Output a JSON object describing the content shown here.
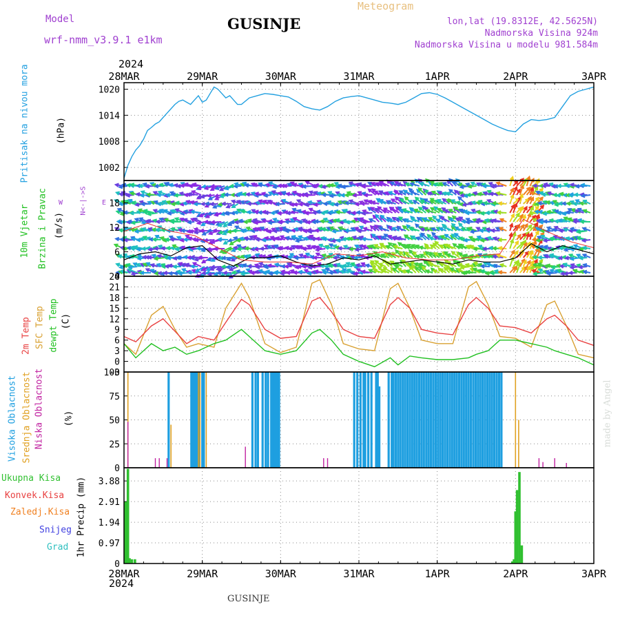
{
  "header": {
    "model_label": "Model",
    "model_name": "wrf-nmm_v3.9.1 e1km",
    "title": "GUSINJE",
    "product": "Meteogram",
    "lonlat": "lon,lat (19.8312E, 42.5625N)",
    "elevation": "Nadmorska Visina 924m",
    "model_elevation": "Nadmorska Visina u modelu 981.584m",
    "year_top": "2024",
    "year_bottom": "2024",
    "footer": "GUSINJE",
    "credit": "made by Angel"
  },
  "colors": {
    "pressure": "#22a0e0",
    "temp2m": "#e84040",
    "sfc": "#d8a030",
    "dew": "#20c020",
    "high_cloud": "#1e9fe0",
    "mid_cloud": "#e0a020",
    "low_cloud": "#c020a0",
    "total_precip": "#30c030",
    "conv_precip": "#e84040",
    "frozen_precip": "#f08020",
    "snow": "#4040e0",
    "hail": "#30c0c0",
    "wind_black": "#000000",
    "wind_red": "#e83030",
    "legend_purple": "#a040d0"
  },
  "chart_data": [
    {
      "type": "line",
      "panel": "pressure",
      "ylabel_left": "Pritisak na nivou mora",
      "ylabel_unit": "(hPa)",
      "x_ticks": [
        "28MAR",
        "29MAR",
        "30MAR",
        "31MAR",
        "1APR",
        "2APR",
        "3APR"
      ],
      "yticks": [
        1002,
        1008,
        1014,
        1020
      ],
      "ylim": [
        999,
        1021.5
      ],
      "grid": true,
      "x_days": [
        0,
        0.05,
        0.1,
        0.15,
        0.2,
        0.25,
        0.3,
        0.35,
        0.4,
        0.45,
        0.5,
        0.55,
        0.6,
        0.65,
        0.7,
        0.75,
        0.8,
        0.85,
        0.9,
        0.95,
        1.0,
        1.05,
        1.1,
        1.15,
        1.2,
        1.25,
        1.3,
        1.35,
        1.4,
        1.45,
        1.5,
        1.6,
        1.7,
        1.8,
        1.9,
        2.0,
        2.1,
        2.2,
        2.3,
        2.4,
        2.5,
        2.6,
        2.7,
        2.8,
        2.9,
        3.0,
        3.1,
        3.2,
        3.3,
        3.4,
        3.5,
        3.6,
        3.7,
        3.8,
        3.9,
        4.0,
        4.1,
        4.2,
        4.3,
        4.4,
        4.5,
        4.6,
        4.7,
        4.8,
        4.9,
        5.0,
        5.1,
        5.2,
        5.3,
        5.4,
        5.5,
        5.6,
        5.7,
        5.8,
        5.9,
        6.0
      ],
      "values": [
        999.5,
        1002.5,
        1004.5,
        1006,
        1007,
        1008.5,
        1010.5,
        1011.2,
        1012,
        1012.5,
        1013.5,
        1014.5,
        1015.5,
        1016.5,
        1017.2,
        1017.5,
        1017,
        1016.5,
        1017.5,
        1018.5,
        1017,
        1017.5,
        1019,
        1020.5,
        1020,
        1019,
        1018,
        1018.5,
        1017.5,
        1016.5,
        1016.5,
        1018,
        1018.5,
        1019,
        1018.8,
        1018.5,
        1018.2,
        1017.2,
        1016,
        1015.5,
        1015.2,
        1016,
        1017.2,
        1018,
        1018.3,
        1018.5,
        1018,
        1017.5,
        1017,
        1016.8,
        1016.5,
        1017,
        1018,
        1019,
        1019.2,
        1018.8,
        1018,
        1017,
        1016,
        1015,
        1014,
        1013,
        1012,
        1011.2,
        1010.5,
        1010.2,
        1012,
        1013,
        1012.8,
        1013,
        1013.5,
        1016,
        1018.5,
        1019.5,
        1020,
        1020.5
      ]
    },
    {
      "type": "line",
      "panel": "wind",
      "ylabel_left": [
        "10m Vjetar",
        "Brzina i Pravac"
      ],
      "ylabel_unit": "(m/s)",
      "compass": [
        "N",
        "<-",
        "|",
        "->",
        "S"
      ],
      "compass_w": "W",
      "compass_e": "E",
      "yticks": [
        0,
        6,
        12,
        18
      ],
      "ylim": [
        0,
        23.5
      ],
      "series": [
        {
          "x_days": [
            0,
            0.2,
            0.4,
            0.6,
            0.8,
            1.0,
            1.2,
            1.4,
            1.6,
            1.8,
            2.0,
            2.2,
            2.4,
            2.6,
            2.8,
            3.0,
            3.2,
            3.4,
            3.6,
            3.8,
            4.0,
            4.2,
            4.4,
            4.6,
            4.8,
            5.0,
            5.2,
            5.4,
            5.6,
            5.8,
            6.0
          ],
          "values": [
            4,
            5.5,
            6,
            5,
            7,
            7.5,
            4,
            2.5,
            4.5,
            4.5,
            5,
            3.5,
            2.5,
            3,
            4.5,
            4,
            5,
            3,
            3.5,
            4,
            3.5,
            3,
            4,
            3.5,
            3.5,
            4.5,
            8,
            6,
            7.5,
            6.5,
            5.5
          ]
        },
        {
          "x_days": [
            0,
            0.3,
            0.6,
            0.9,
            1.2,
            1.5,
            1.8,
            2.1,
            2.4,
            2.7,
            3.0,
            3.3,
            3.6,
            3.9,
            4.2,
            4.5,
            4.8,
            5.1,
            5.4,
            5.7,
            6.0
          ],
          "values": [
            11,
            13,
            11,
            10,
            7,
            4,
            3.5,
            3.5,
            3,
            5.5,
            5,
            6,
            4.5,
            4,
            4,
            5,
            5.5,
            14,
            11,
            8.5,
            7
          ]
        }
      ]
    },
    {
      "type": "line",
      "panel": "temperature",
      "ylabel_left": [
        "2m Temp",
        "SFC Temp",
        "dewpt Temp"
      ],
      "ylabel_unit": "(C)",
      "yticks": [
        -3,
        0,
        3,
        6,
        9,
        12,
        15,
        18,
        21,
        24
      ],
      "ylim": [
        -3,
        24
      ],
      "series": [
        {
          "name": "2m Temp",
          "x_days": [
            0,
            0.15,
            0.35,
            0.5,
            0.65,
            0.8,
            0.95,
            1.15,
            1.3,
            1.5,
            1.6,
            1.8,
            2.0,
            2.2,
            2.4,
            2.5,
            2.65,
            2.8,
            3.0,
            3.2,
            3.4,
            3.5,
            3.65,
            3.8,
            4.0,
            4.2,
            4.4,
            4.5,
            4.65,
            4.8,
            5.0,
            5.2,
            5.4,
            5.5,
            5.65,
            5.8,
            6.0
          ],
          "values": [
            7,
            5.5,
            10,
            12,
            8.5,
            5,
            7,
            6,
            11,
            17.5,
            16,
            9,
            6.5,
            7,
            17,
            18,
            14,
            9,
            7,
            6.5,
            16,
            18,
            15,
            9,
            8,
            7.5,
            16,
            18,
            15,
            10,
            9.5,
            8,
            12,
            13,
            10,
            6,
            4.5
          ]
        },
        {
          "name": "SFC Temp",
          "x_days": [
            0,
            0.15,
            0.35,
            0.5,
            0.65,
            0.8,
            0.95,
            1.15,
            1.3,
            1.5,
            1.6,
            1.8,
            2.0,
            2.2,
            2.4,
            2.5,
            2.65,
            2.8,
            3.0,
            3.2,
            3.4,
            3.5,
            3.65,
            3.8,
            4.0,
            4.2,
            4.4,
            4.5,
            4.65,
            4.8,
            5.0,
            5.2,
            5.4,
            5.5,
            5.65,
            5.8,
            6.0
          ],
          "values": [
            5,
            2,
            13,
            15.5,
            9,
            4,
            5,
            4,
            15,
            22,
            18,
            5,
            2.5,
            4,
            22,
            23,
            16,
            5,
            3.5,
            3,
            20.5,
            22,
            15,
            6,
            5,
            5,
            21,
            22.5,
            16,
            7,
            6.5,
            4,
            16,
            17,
            10,
            2,
            1
          ]
        },
        {
          "name": "dewpt Temp",
          "x_days": [
            0,
            0.15,
            0.35,
            0.5,
            0.65,
            0.8,
            0.95,
            1.15,
            1.3,
            1.5,
            1.6,
            1.8,
            2.0,
            2.2,
            2.4,
            2.5,
            2.65,
            2.8,
            3.0,
            3.2,
            3.4,
            3.5,
            3.65,
            3.8,
            4.0,
            4.2,
            4.4,
            4.5,
            4.65,
            4.8,
            5.0,
            5.2,
            5.4,
            5.5,
            5.65,
            5.8,
            6.0
          ],
          "values": [
            5,
            1,
            5,
            3,
            4,
            2,
            3,
            5,
            6,
            9,
            7,
            3,
            2,
            3,
            8,
            9,
            6,
            2,
            0,
            -1.5,
            1,
            -1,
            1.5,
            1,
            0.5,
            0.5,
            1,
            2,
            3,
            6,
            6,
            5,
            4,
            3,
            2,
            1,
            -1
          ]
        }
      ]
    },
    {
      "type": "bar",
      "panel": "cloud",
      "ylabel_left": [
        "Visoka Oblacnost",
        "Srednja Oblacnost",
        "Niska Oblacnost"
      ],
      "ylabel_unit": "(%)",
      "yticks": [
        0,
        25,
        50,
        75,
        100
      ],
      "ylim": [
        0,
        100
      ],
      "series": [
        {
          "name": "Visoka Oblacnost",
          "x_days": [
            0.57,
            0.86,
            0.88,
            0.9,
            0.92,
            0.94,
            0.96,
            1.0,
            1.02,
            1.64,
            1.68,
            1.71,
            1.77,
            1.81,
            1.84,
            1.88,
            1.9,
            1.92,
            1.94,
            1.96,
            1.98,
            2.94,
            2.98,
            3.02,
            3.06,
            3.08,
            3.12,
            3.16,
            3.22,
            3.24,
            3.26,
            3.38,
            3.42,
            3.44,
            3.47,
            3.5,
            3.53,
            3.56,
            3.59,
            3.62,
            3.65,
            3.68,
            3.71,
            3.74,
            3.77,
            3.8,
            3.83,
            3.86,
            3.89,
            3.92,
            3.95,
            3.98,
            4.01,
            4.04,
            4.07,
            4.1,
            4.13,
            4.16,
            4.19,
            4.22,
            4.25,
            4.28,
            4.31,
            4.34,
            4.37,
            4.4,
            4.43,
            4.46,
            4.49,
            4.52,
            4.55,
            4.58,
            4.61,
            4.64,
            4.67,
            4.7,
            4.73,
            4.76,
            4.79,
            4.82
          ],
          "values": [
            100,
            100,
            100,
            100,
            100,
            100,
            100,
            100,
            100,
            100,
            100,
            100,
            100,
            100,
            100,
            100,
            100,
            100,
            100,
            100,
            100,
            100,
            100,
            100,
            100,
            100,
            100,
            100,
            100,
            100,
            85,
            100,
            100,
            100,
            100,
            100,
            100,
            100,
            100,
            100,
            100,
            100,
            100,
            100,
            100,
            100,
            100,
            100,
            100,
            100,
            100,
            100,
            100,
            100,
            100,
            100,
            100,
            100,
            100,
            100,
            100,
            100,
            100,
            100,
            100,
            100,
            100,
            100,
            100,
            100,
            100,
            100,
            100,
            100,
            100,
            100,
            100,
            100,
            100,
            100
          ]
        },
        {
          "name": "Srednja Oblacnost",
          "x_days": [
            0.05,
            0.6,
            0.95,
            0.97,
            1.05,
            5.0,
            5.04
          ],
          "values": [
            100,
            45,
            100,
            100,
            100,
            100,
            50
          ]
        },
        {
          "name": "Niska Oblacnost",
          "x_days": [
            0.05,
            0.4,
            0.45,
            0.55,
            1.55,
            2.55,
            2.6,
            5.3,
            5.35,
            5.5,
            5.65
          ],
          "values": [
            48,
            10,
            10,
            10,
            22,
            10,
            10,
            10,
            6,
            10,
            5
          ]
        }
      ]
    },
    {
      "type": "bar",
      "panel": "precipitation",
      "ylabel_left": [
        "Ukupna Kisa",
        "Konvek.Kisa",
        "Zaledj.Kisa",
        "Snijeg",
        "Grad"
      ],
      "ylabel_unit": "1hr Precip (mm)",
      "yticks": [
        0,
        0.97,
        1.94,
        2.91,
        3.88
      ],
      "ylim": [
        0,
        4.5
      ],
      "series": [
        {
          "name": "Ukupna Kisa",
          "x_days": [
            0.02,
            0.05,
            0.07,
            0.1,
            0.14,
            4.96,
            4.98,
            5.0,
            5.02,
            5.05,
            5.08
          ],
          "values": [
            2.9,
            4.45,
            0.25,
            0.2,
            0.2,
            0.1,
            0.2,
            2.45,
            3.45,
            4.3,
            0.85
          ]
        }
      ]
    }
  ]
}
